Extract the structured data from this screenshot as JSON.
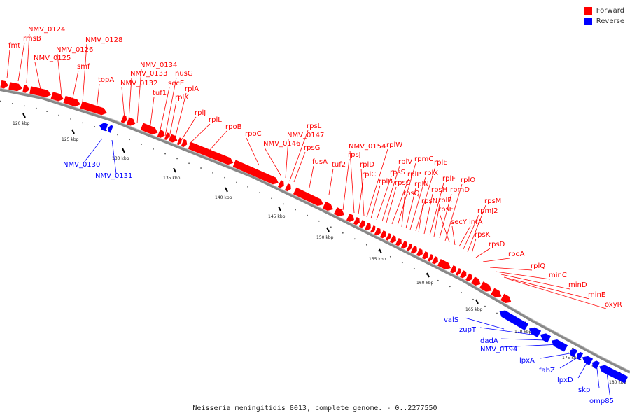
{
  "colors": {
    "forward": "#ff0000",
    "reverse": "#0000ff",
    "backbone": "#888888",
    "tick": "#333333"
  },
  "legend": [
    {
      "label": "Forward",
      "color": "#ff0000"
    },
    {
      "label": "Reverse",
      "color": "#0000ff"
    }
  ],
  "caption": "Neisseria meningitidis 8013, complete genome. - 0..2277550",
  "scale_labels": [
    "120 kbp",
    "125 kbp",
    "130 kbp",
    "135 kbp",
    "140 kbp",
    "145 kbp",
    "150 kbp",
    "155 kbp",
    "160 kbp",
    "165 kbp",
    "170 kbp",
    "175 kbp",
    "180 kbp"
  ],
  "forward_labels": [
    "fmt",
    "rmsB",
    "NMV_0124",
    "NMV_0125",
    "NMV_0126",
    "smf",
    "NMV_0128",
    "topA",
    "NMV_0132",
    "NMV_0133",
    "NMV_0134",
    "tuf1",
    "secE",
    "nusG",
    "rplK",
    "rplA",
    "rplJ",
    "rplL",
    "rpoB",
    "rpoC",
    "NMV_0146",
    "NMV_0147",
    "rpsL",
    "rpsG",
    "fusA",
    "tuf2",
    "rpsJ",
    "NMV_0154",
    "rplC",
    "rplD",
    "rplW",
    "rplB",
    "rpsS",
    "rplV",
    "rpsC",
    "rplP",
    "rpmC",
    "rpsQ",
    "rplN",
    "rplX",
    "rplE",
    "rpsN",
    "rpsH",
    "rplF",
    "rplR",
    "rpmD",
    "rplO",
    "rpsE",
    "secY",
    "infA",
    "rpmJ2",
    "rpsM",
    "rpsK",
    "rpsD",
    "rpoA",
    "rplQ",
    "minC",
    "minD",
    "minE",
    "oxyR"
  ],
  "reverse_labels": [
    "NMV_0130",
    "NMV_0131",
    "valS",
    "zupT",
    "dadA",
    "NMV_0194",
    "lpxA",
    "fabZ",
    "lpxD",
    "skp",
    "omp85"
  ]
}
